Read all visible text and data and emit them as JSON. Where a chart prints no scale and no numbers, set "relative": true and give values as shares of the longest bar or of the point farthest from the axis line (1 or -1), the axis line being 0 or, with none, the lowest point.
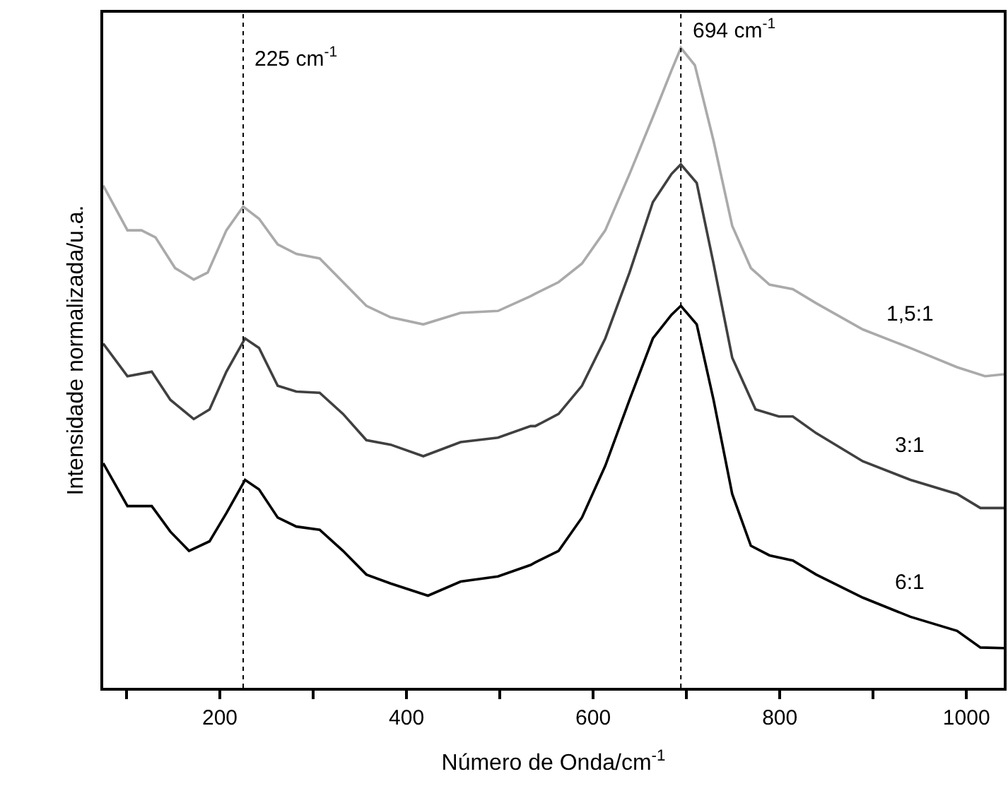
{
  "chart_data": {
    "type": "line",
    "relative": true,
    "xlabel": "Número de Onda/cm$^{-1}$",
    "ylabel": "Intensidade normalizada/u.a.",
    "xlim": [
      75,
      1040
    ],
    "xticks": [
      {
        "value": 100,
        "label": null
      },
      200,
      {
        "value": 300,
        "label": null
      },
      400,
      {
        "value": 500,
        "label": null
      },
      600,
      {
        "value": 700,
        "label": null
      },
      800,
      {
        "value": 900,
        "label": null
      },
      1000
    ],
    "legend": false,
    "tick_labels": "x",
    "line_style": "solid",
    "marker": "none",
    "ref_lines": [
      {
        "axis": "x",
        "value": 225,
        "label": "225 cm$^{-1}$",
        "line_style": "dotted",
        "color": "#000000"
      },
      {
        "axis": "x",
        "value": 694,
        "label": "694 cm$^{-1}$",
        "line_style": "dotted",
        "color": "#000000"
      }
    ],
    "series": [
      {
        "name": "1,5:1",
        "color": "#aaaaaa",
        "x": [
          75,
          101,
          116,
          131,
          152,
          172,
          187,
          207,
          225,
          242,
          262,
          282,
          307,
          332,
          357,
          383,
          418,
          458,
          498,
          533,
          538,
          563,
          588,
          613,
          639,
          664,
          684,
          694,
          709,
          729,
          749,
          769,
          789,
          814,
          839,
          889,
          940,
          990,
          1020,
          1040
        ],
        "values": [
          0.785,
          0.715,
          0.715,
          0.704,
          0.656,
          0.638,
          0.649,
          0.715,
          0.752,
          0.733,
          0.693,
          0.678,
          0.671,
          0.634,
          0.597,
          0.579,
          0.568,
          0.586,
          0.589,
          0.612,
          0.616,
          0.634,
          0.663,
          0.715,
          0.803,
          0.892,
          0.965,
          1.0,
          0.973,
          0.855,
          0.722,
          0.656,
          0.63,
          0.623,
          0.601,
          0.56,
          0.531,
          0.501,
          0.487,
          0.49
        ]
      },
      {
        "name": "3:1",
        "color": "#404040",
        "x": [
          75,
          101,
          127,
          147,
          172,
          189,
          207,
          227,
          242,
          262,
          282,
          307,
          332,
          357,
          383,
          418,
          458,
          498,
          533,
          538,
          563,
          588,
          613,
          639,
          664,
          684,
          694,
          711,
          729,
          749,
          774,
          799,
          814,
          839,
          889,
          940,
          990,
          1015,
          1040
        ],
        "values": [
          0.538,
          0.487,
          0.494,
          0.45,
          0.42,
          0.435,
          0.494,
          0.546,
          0.531,
          0.472,
          0.463,
          0.461,
          0.428,
          0.387,
          0.38,
          0.362,
          0.384,
          0.391,
          0.409,
          0.409,
          0.428,
          0.472,
          0.546,
          0.649,
          0.759,
          0.803,
          0.818,
          0.789,
          0.663,
          0.516,
          0.435,
          0.424,
          0.424,
          0.398,
          0.354,
          0.325,
          0.303,
          0.281,
          0.281
        ]
      },
      {
        "name": "6:1",
        "color": "#000000",
        "x": [
          75,
          101,
          127,
          147,
          167,
          189,
          207,
          227,
          242,
          262,
          282,
          307,
          332,
          357,
          383,
          423,
          458,
          498,
          533,
          538,
          563,
          588,
          613,
          639,
          664,
          684,
          694,
          711,
          729,
          749,
          769,
          789,
          814,
          839,
          889,
          940,
          990,
          1015,
          1040
        ],
        "values": [
          0.351,
          0.284,
          0.284,
          0.244,
          0.214,
          0.229,
          0.273,
          0.325,
          0.31,
          0.266,
          0.252,
          0.247,
          0.214,
          0.177,
          0.163,
          0.144,
          0.166,
          0.174,
          0.192,
          0.196,
          0.214,
          0.266,
          0.347,
          0.45,
          0.546,
          0.583,
          0.597,
          0.568,
          0.45,
          0.303,
          0.222,
          0.207,
          0.199,
          0.177,
          0.141,
          0.111,
          0.089,
          0.063,
          0.062
        ]
      }
    ]
  }
}
